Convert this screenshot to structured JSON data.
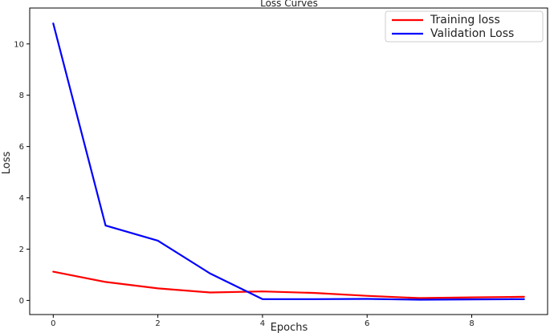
{
  "chart_data": {
    "type": "line",
    "title": "Loss Curves",
    "xlabel": "Epochs",
    "ylabel": "Loss",
    "x": [
      0,
      1,
      2,
      3,
      4,
      5,
      6,
      7,
      8,
      9
    ],
    "xlim": [
      -0.45,
      9.45
    ],
    "ylim": [
      -0.55,
      11.4
    ],
    "xticks": [
      0,
      2,
      4,
      6,
      8
    ],
    "yticks": [
      0,
      2,
      4,
      6,
      8,
      10
    ],
    "grid": false,
    "legend_position": "top-right",
    "series": [
      {
        "name": "Training loss",
        "color": "#ff0000",
        "values": [
          1.12,
          0.72,
          0.47,
          0.31,
          0.35,
          0.29,
          0.18,
          0.09,
          0.12,
          0.14
        ]
      },
      {
        "name": "Validation Loss",
        "color": "#0000ff",
        "values": [
          10.8,
          2.92,
          2.33,
          1.05,
          0.05,
          0.05,
          0.06,
          0.03,
          0.04,
          0.05
        ]
      }
    ]
  }
}
